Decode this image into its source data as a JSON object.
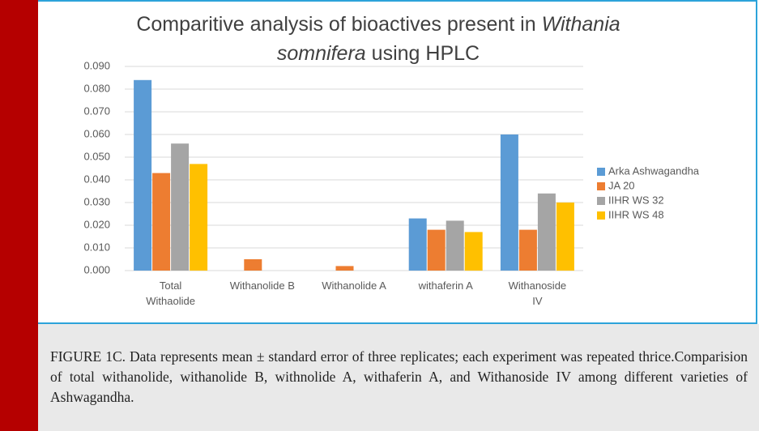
{
  "chart_data": {
    "type": "bar",
    "title_lines": [
      [
        {
          "text": "Comparitive analysis of  bioactives present in",
          "italic": false
        },
        {
          "text": "Withania",
          "italic": true
        }
      ],
      [
        {
          "text": "somnifera",
          "italic": true
        },
        {
          "text": "using HPLC",
          "italic": false
        }
      ]
    ],
    "categories": [
      "Total\nWithaolide",
      "Withanolide B",
      "Withanolide A",
      "withaferin A",
      "Withanoside\nIV"
    ],
    "series": [
      {
        "name": "Arka Ashwagandha",
        "color": "#5b9bd5",
        "values": [
          0.084,
          0,
          0,
          0.023,
          0.06
        ]
      },
      {
        "name": "JA 20",
        "color": "#ed7d31",
        "values": [
          0.043,
          0.005,
          0.002,
          0.018,
          0.018
        ]
      },
      {
        "name": "IIHR WS 32",
        "color": "#a5a5a5",
        "values": [
          0.056,
          0,
          0,
          0.022,
          0.034
        ]
      },
      {
        "name": "IIHR WS 48",
        "color": "#ffc000",
        "values": [
          0.047,
          0,
          0,
          0.017,
          0.03
        ]
      }
    ],
    "ylim": [
      0,
      0.09
    ],
    "yticks": [
      {
        "value": 0,
        "label": "0.000"
      },
      {
        "value": 0.01,
        "label": "0.010"
      },
      {
        "value": 0.02,
        "label": "0.020"
      },
      {
        "value": 0.03,
        "label": "0.030"
      },
      {
        "value": 0.04,
        "label": "0.040"
      },
      {
        "value": 0.05,
        "label": "0.050"
      },
      {
        "value": 0.06,
        "label": "0.060"
      },
      {
        "value": 0.07,
        "label": "0.070"
      },
      {
        "value": 0.08,
        "label": "0.080"
      },
      {
        "value": 0.09,
        "label": "0.090"
      }
    ],
    "grid": true,
    "legend": "right"
  },
  "caption": "FIGURE 1C. Data represents mean ± standard error of three replicates; each experiment was repeated thrice.Comparision of total withanolide, withanolide B, withnolide A, withaferin A, and Withanoside IV among different varieties of Ashwagandha."
}
